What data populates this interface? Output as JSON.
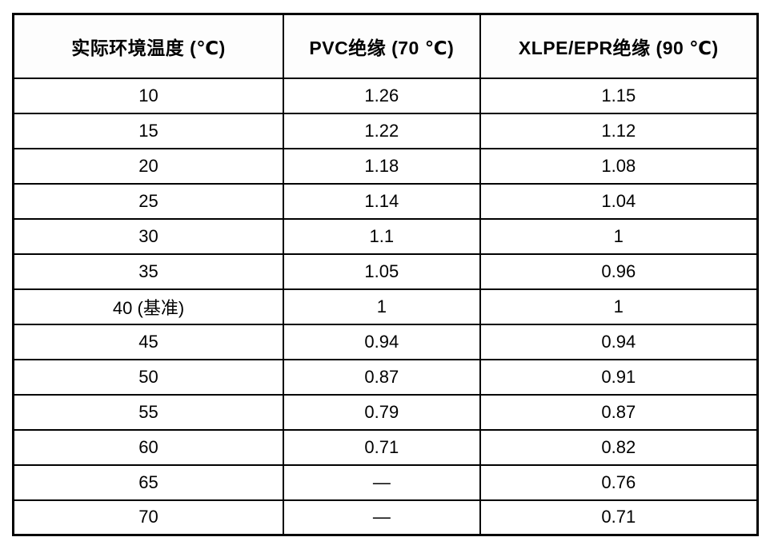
{
  "chart_data": {
    "type": "table",
    "title": "",
    "columns": [
      "实际环境温度 (℃)",
      "PVC绝缘 (70 ℃)",
      "XLPE/EPR绝缘 (90 ℃)"
    ],
    "rows": [
      [
        "10",
        "1.26",
        "1.15"
      ],
      [
        "15",
        "1.22",
        "1.12"
      ],
      [
        "20",
        "1.18",
        "1.08"
      ],
      [
        "25",
        "1.14",
        "1.04"
      ],
      [
        "30",
        "1.1",
        "1"
      ],
      [
        "35",
        "1.05",
        "0.96"
      ],
      [
        "40 (基准)",
        "1",
        "1"
      ],
      [
        "45",
        "0.94",
        "0.94"
      ],
      [
        "50",
        "0.87",
        "0.91"
      ],
      [
        "55",
        "0.79",
        "0.87"
      ],
      [
        "60",
        "0.71",
        "0.82"
      ],
      [
        "65",
        "—",
        "0.76"
      ],
      [
        "70",
        "—",
        "0.71"
      ]
    ],
    "baseline_row_label": "40 (基准)",
    "missing_value_symbol": "—"
  },
  "colors": {
    "border": "#000000",
    "background": "#ffffff",
    "text": "#000000"
  }
}
